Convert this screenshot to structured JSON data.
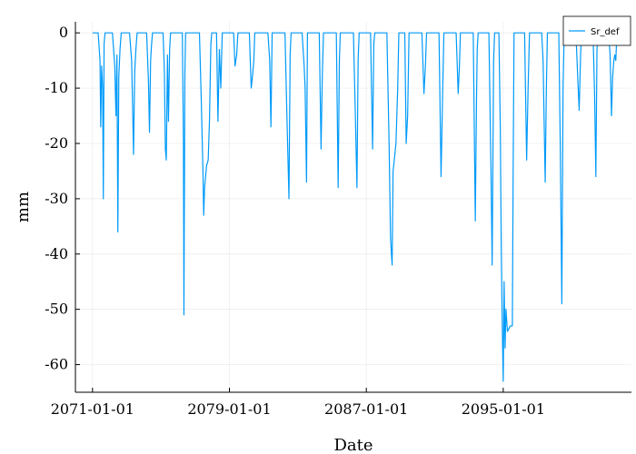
{
  "chart_data": {
    "type": "line",
    "title": "",
    "xlabel": "Date",
    "ylabel": "mm",
    "x_type": "date",
    "xlim": [
      "2070-01-01",
      "2102-07-01"
    ],
    "ylim": [
      -65,
      2
    ],
    "x_ticks": [
      "2071-01-01",
      "2079-01-01",
      "2087-01-01",
      "2095-01-01"
    ],
    "y_ticks": [
      0,
      -10,
      -20,
      -30,
      -40,
      -50,
      -60
    ],
    "y_tick_labels": [
      "0",
      "-10",
      "-20",
      "-30",
      "-40",
      "-50",
      "-60"
    ],
    "grid": true,
    "legend_position": "top-right",
    "series": [
      {
        "name": "Sr_def",
        "color": "#009af9",
        "points": [
          [
            "2071-01-01",
            0
          ],
          [
            "2071-05-01",
            0
          ],
          [
            "2071-06-10",
            -5
          ],
          [
            "2071-06-25",
            -17
          ],
          [
            "2071-07-15",
            -6
          ],
          [
            "2071-08-05",
            -10
          ],
          [
            "2071-08-20",
            -30
          ],
          [
            "2071-09-05",
            -2
          ],
          [
            "2071-09-25",
            0
          ],
          [
            "2072-03-01",
            0
          ],
          [
            "2072-04-20",
            -6
          ],
          [
            "2072-05-15",
            -15
          ],
          [
            "2072-06-05",
            -4
          ],
          [
            "2072-06-25",
            -36
          ],
          [
            "2072-07-15",
            -8
          ],
          [
            "2072-08-10",
            -3
          ],
          [
            "2072-09-05",
            0
          ],
          [
            "2073-03-01",
            0
          ],
          [
            "2073-04-15",
            -5
          ],
          [
            "2073-05-05",
            -13
          ],
          [
            "2073-05-25",
            -22
          ],
          [
            "2073-06-20",
            -7
          ],
          [
            "2073-07-15",
            -3
          ],
          [
            "2073-08-10",
            0
          ],
          [
            "2074-03-01",
            0
          ],
          [
            "2074-04-10",
            -9
          ],
          [
            "2074-05-01",
            -18
          ],
          [
            "2074-05-25",
            -5
          ],
          [
            "2074-06-15",
            -2
          ],
          [
            "2074-07-05",
            0
          ],
          [
            "2075-02-15",
            0
          ],
          [
            "2075-03-15",
            -7
          ],
          [
            "2075-04-05",
            -21
          ],
          [
            "2075-04-25",
            -23
          ],
          [
            "2075-05-20",
            -4
          ],
          [
            "2075-06-10",
            -16
          ],
          [
            "2075-07-05",
            -3
          ],
          [
            "2075-07-25",
            0
          ],
          [
            "2076-04-01",
            0
          ],
          [
            "2076-04-25",
            -20
          ],
          [
            "2076-05-05",
            -51
          ],
          [
            "2076-05-25",
            -8
          ],
          [
            "2076-06-10",
            0
          ],
          [
            "2077-04-01",
            0
          ],
          [
            "2077-05-10",
            -12
          ],
          [
            "2077-06-15",
            -25
          ],
          [
            "2077-07-01",
            -33
          ],
          [
            "2077-07-20",
            -28
          ],
          [
            "2077-08-10",
            -26
          ],
          [
            "2077-09-01",
            -24
          ],
          [
            "2077-10-05",
            -23
          ],
          [
            "2077-11-01",
            -16
          ],
          [
            "2077-12-01",
            -2
          ],
          [
            "2077-12-20",
            0
          ],
          [
            "2078-04-01",
            0
          ],
          [
            "2078-05-01",
            -16
          ],
          [
            "2078-06-01",
            -3
          ],
          [
            "2078-07-01",
            -10
          ],
          [
            "2078-08-01",
            0
          ],
          [
            "2079-04-01",
            0
          ],
          [
            "2079-05-01",
            -6
          ],
          [
            "2079-06-05",
            -4
          ],
          [
            "2079-07-01",
            0
          ],
          [
            "2080-03-01",
            0
          ],
          [
            "2080-04-10",
            -10
          ],
          [
            "2080-05-05",
            -8
          ],
          [
            "2080-06-05",
            -5
          ],
          [
            "2080-06-25",
            0
          ],
          [
            "2081-04-01",
            0
          ],
          [
            "2081-05-10",
            -5
          ],
          [
            "2081-06-05",
            -17
          ],
          [
            "2081-07-01",
            0
          ],
          [
            "2082-04-01",
            0
          ],
          [
            "2082-05-15",
            -16
          ],
          [
            "2082-06-25",
            -30
          ],
          [
            "2082-07-20",
            -4
          ],
          [
            "2082-08-10",
            0
          ],
          [
            "2083-04-01",
            0
          ],
          [
            "2083-05-15",
            -6
          ],
          [
            "2083-06-05",
            -10
          ],
          [
            "2083-07-05",
            -27
          ],
          [
            "2083-07-25",
            0
          ],
          [
            "2084-04-01",
            0
          ],
          [
            "2084-05-10",
            -21
          ],
          [
            "2084-06-05",
            -8
          ],
          [
            "2084-07-01",
            0
          ],
          [
            "2085-04-01",
            0
          ],
          [
            "2085-05-10",
            -28
          ],
          [
            "2085-06-05",
            -5
          ],
          [
            "2085-06-25",
            0
          ],
          [
            "2086-04-01",
            0
          ],
          [
            "2086-05-15",
            -16
          ],
          [
            "2086-06-15",
            -28
          ],
          [
            "2086-07-10",
            -5
          ],
          [
            "2086-08-01",
            0
          ],
          [
            "2087-04-01",
            0
          ],
          [
            "2087-05-15",
            -21
          ],
          [
            "2087-06-10",
            -2
          ],
          [
            "2087-07-01",
            0
          ],
          [
            "2088-03-15",
            0
          ],
          [
            "2088-05-01",
            -20
          ],
          [
            "2088-06-01",
            -37
          ],
          [
            "2088-06-20",
            -40
          ],
          [
            "2088-07-05",
            -42
          ],
          [
            "2088-07-25",
            -25
          ],
          [
            "2088-08-20",
            -23
          ],
          [
            "2088-09-25",
            -20
          ],
          [
            "2088-11-01",
            -10
          ],
          [
            "2088-11-25",
            0
          ],
          [
            "2089-04-01",
            0
          ],
          [
            "2089-05-01",
            -20
          ],
          [
            "2089-06-01",
            -15
          ],
          [
            "2089-07-01",
            0
          ],
          [
            "2090-04-01",
            0
          ],
          [
            "2090-05-15",
            -11
          ],
          [
            "2090-06-15",
            -6
          ],
          [
            "2090-07-10",
            0
          ],
          [
            "2091-04-01",
            0
          ],
          [
            "2091-05-15",
            -26
          ],
          [
            "2091-06-20",
            -10
          ],
          [
            "2091-07-15",
            0
          ],
          [
            "2092-04-01",
            0
          ],
          [
            "2092-05-15",
            -11
          ],
          [
            "2092-06-10",
            -6
          ],
          [
            "2092-07-01",
            0
          ],
          [
            "2093-04-01",
            0
          ],
          [
            "2093-05-15",
            -34
          ],
          [
            "2093-06-10",
            -12
          ],
          [
            "2093-06-25",
            -3
          ],
          [
            "2093-07-15",
            0
          ],
          [
            "2094-03-01",
            0
          ],
          [
            "2094-04-15",
            -25
          ],
          [
            "2094-05-10",
            -42
          ],
          [
            "2094-06-10",
            -5
          ],
          [
            "2094-07-01",
            0
          ],
          [
            "2094-10-01",
            0
          ],
          [
            "2094-11-01",
            -18
          ],
          [
            "2094-11-20",
            -39
          ],
          [
            "2094-12-10",
            -52
          ],
          [
            "2095-01-01",
            -63
          ],
          [
            "2095-01-20",
            -45
          ],
          [
            "2095-02-10",
            -57
          ],
          [
            "2095-03-01",
            -50
          ],
          [
            "2095-04-01",
            -54
          ],
          [
            "2095-06-01",
            -53
          ],
          [
            "2095-07-15",
            -53
          ],
          [
            "2095-08-01",
            -25
          ],
          [
            "2095-08-20",
            0
          ],
          [
            "2096-04-01",
            0
          ],
          [
            "2096-05-15",
            -23
          ],
          [
            "2096-06-15",
            -10
          ],
          [
            "2096-07-15",
            0
          ],
          [
            "2097-04-01",
            0
          ],
          [
            "2097-05-01",
            -5
          ],
          [
            "2097-05-25",
            -17
          ],
          [
            "2097-06-15",
            -27
          ],
          [
            "2097-07-10",
            -10
          ],
          [
            "2097-08-01",
            0
          ],
          [
            "2098-04-01",
            0
          ],
          [
            "2098-05-05",
            -22
          ],
          [
            "2098-06-05",
            -49
          ],
          [
            "2098-07-01",
            -10
          ],
          [
            "2098-07-25",
            0
          ],
          [
            "2099-04-01",
            0
          ],
          [
            "2099-05-10",
            -8
          ],
          [
            "2099-06-10",
            -14
          ],
          [
            "2099-07-10",
            -4
          ],
          [
            "2099-08-01",
            0
          ],
          [
            "2100-04-01",
            0
          ],
          [
            "2100-05-05",
            -11
          ],
          [
            "2100-06-01",
            -26
          ],
          [
            "2100-06-25",
            -3
          ],
          [
            "2100-07-20",
            0
          ],
          [
            "2101-03-01",
            0
          ],
          [
            "2101-04-01",
            -4
          ],
          [
            "2101-05-01",
            -15
          ],
          [
            "2101-05-25",
            -8
          ],
          [
            "2101-06-20",
            -5
          ],
          [
            "2101-07-10",
            -4
          ],
          [
            "2101-08-01",
            -5
          ],
          [
            "2101-08-25",
            0
          ]
        ]
      }
    ]
  }
}
